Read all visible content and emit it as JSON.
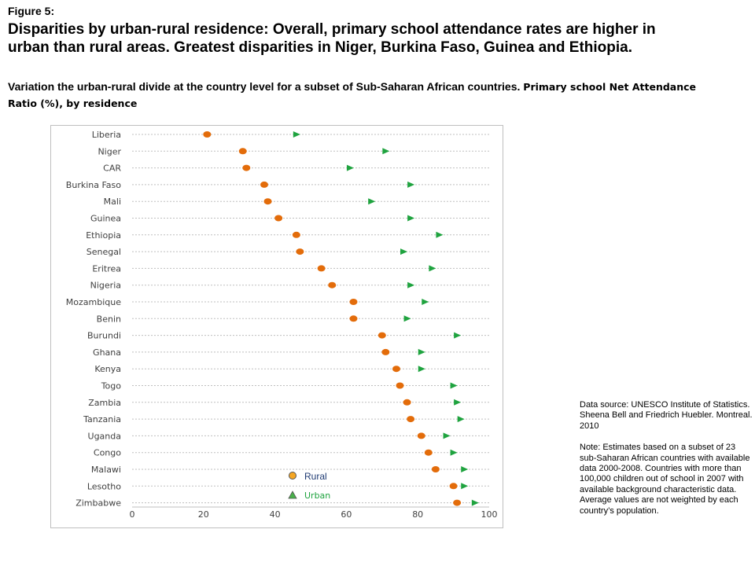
{
  "figure_label": "Figure 5:",
  "headline": "Disparities by urban-rural residence: Overall, primary school attendance rates are higher in urban than rural areas. Greatest disparities in Niger, Burkina Faso, Guinea and Ethiopia.",
  "subtitle_main": "Variation the urban-rural divide at the country level for a subset of Sub-Saharan African countries.",
  "subtitle_tail": "Primary school Net Attendance Ratio (%), by residence",
  "notes": {
    "source": "Data source: UNESCO Institute of Statistics. Sheena Bell and Friedrich Huebler. Montreal. 2010",
    "note": "Note: Estimates based on a subset of 23 sub-Saharan African countries with available data 2000-2008. Countries with more than 100,000 children out of school in 2007 with available background characteristic data. Average values are not weighted by each country’s population."
  },
  "colors": {
    "rural": "#e36c0a",
    "urban": "#1fa33f",
    "grid": "#bfbfbf",
    "label": "#404040"
  },
  "chart_data": {
    "type": "scatter",
    "categories": [
      "Liberia",
      "Niger",
      "CAR",
      "Burkina Faso",
      "Mali",
      "Guinea",
      "Ethiopia",
      "Senegal",
      "Eritrea",
      "Nigeria",
      "Mozambique",
      "Benin",
      "Burundi",
      "Ghana",
      "Kenya",
      "Togo",
      "Zambia",
      "Tanzania",
      "Uganda",
      "Congo",
      "Malawi",
      "Lesotho",
      "Zimbabwe"
    ],
    "series": [
      {
        "name": "Rural",
        "marker": "circle",
        "values": [
          21,
          31,
          32,
          37,
          38,
          41,
          46,
          47,
          53,
          56,
          62,
          62,
          70,
          71,
          74,
          75,
          77,
          78,
          81,
          83,
          85,
          90,
          91
        ]
      },
      {
        "name": "Urban",
        "marker": "triangle",
        "values": [
          46,
          71,
          61,
          78,
          67,
          78,
          86,
          76,
          84,
          78,
          82,
          77,
          91,
          81,
          81,
          90,
          91,
          92,
          88,
          90,
          93,
          93,
          96
        ]
      }
    ],
    "xlim": [
      0,
      100
    ],
    "xticks": [
      0,
      20,
      40,
      60,
      80,
      100
    ],
    "legend_position": "inside-bottom"
  }
}
